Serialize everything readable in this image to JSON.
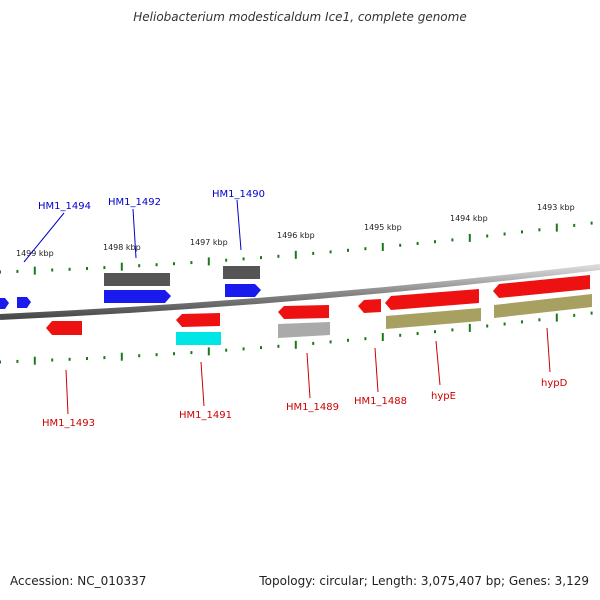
{
  "title": "Heliobacterium modesticaldum Ice1, complete genome",
  "footer": {
    "accession": "Accession: NC_010337",
    "summary": "Topology: circular; Length: 3,075,407 bp; Genes: 3,129"
  },
  "colors": {
    "background": "#ffffff",
    "backbone": "#8a8a8a",
    "tick": "#1a7a1a",
    "forward_label": "#0000cc",
    "reverse_label": "#cc0000",
    "kbp_label": "#222222"
  },
  "ruler": {
    "unit": "kbp",
    "labels": [
      "1499 kbp",
      "1498 kbp",
      "1497 kbp",
      "1496 kbp",
      "1495 kbp",
      "1494 kbp",
      "1493 kbp"
    ]
  },
  "genes": [
    {
      "label": "HM1_1494",
      "strand": "forward"
    },
    {
      "label": "HM1_1492",
      "strand": "forward"
    },
    {
      "label": "HM1_1490",
      "strand": "forward"
    },
    {
      "label": "HM1_1493",
      "strand": "reverse"
    },
    {
      "label": "HM1_1491",
      "strand": "reverse"
    },
    {
      "label": "HM1_1489",
      "strand": "reverse"
    },
    {
      "label": "HM1_1488",
      "strand": "reverse"
    },
    {
      "label": "hypE",
      "strand": "reverse"
    },
    {
      "label": "hypD",
      "strand": "reverse"
    }
  ],
  "feature_tracks": [
    {
      "name": "gene-track",
      "color": "#1a1aee"
    },
    {
      "name": "gene-track",
      "color": "#ee1111"
    },
    {
      "name": "cds-track",
      "color": "#555555"
    },
    {
      "name": "cds-track",
      "color": "#00e5e5"
    },
    {
      "name": "cds-track",
      "color": "#aaaaaa"
    },
    {
      "name": "cds-track",
      "color": "#a8a060"
    }
  ]
}
